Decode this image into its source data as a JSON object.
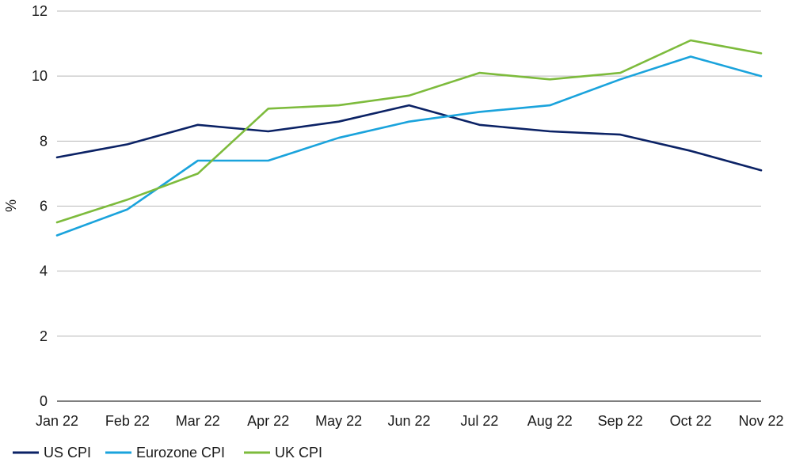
{
  "chart_data": {
    "type": "line",
    "title": "",
    "xlabel": "",
    "ylabel": "%",
    "ylim": [
      0,
      12
    ],
    "yticks": [
      0,
      2,
      4,
      6,
      8,
      10,
      12
    ],
    "grid": "horizontal",
    "legend_position": "bottom-left",
    "categories": [
      "Jan 22",
      "Feb 22",
      "Mar 22",
      "Apr 22",
      "May 22",
      "Jun 22",
      "Jul 22",
      "Aug 22",
      "Sep 22",
      "Oct 22",
      "Nov 22"
    ],
    "series": [
      {
        "name": "US CPI",
        "color": "#0b2265",
        "values": [
          7.5,
          7.9,
          8.5,
          8.3,
          8.6,
          9.1,
          8.5,
          8.3,
          8.2,
          7.7,
          7.1
        ]
      },
      {
        "name": "Eurozone CPI",
        "color": "#1aa3dc",
        "values": [
          5.1,
          5.9,
          7.4,
          7.4,
          8.1,
          8.6,
          8.9,
          9.1,
          9.9,
          10.6,
          10.0
        ]
      },
      {
        "name": "UK CPI",
        "color": "#7dbb3c",
        "values": [
          5.5,
          6.2,
          7.0,
          9.0,
          9.1,
          9.4,
          10.1,
          9.9,
          10.1,
          11.1,
          10.7
        ]
      }
    ]
  }
}
